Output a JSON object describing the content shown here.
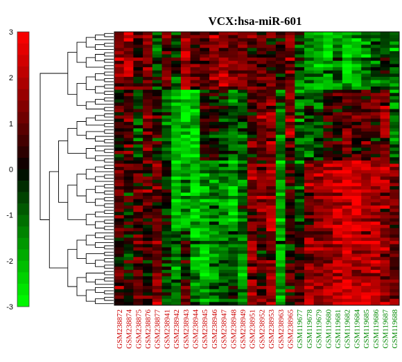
{
  "chart_data": {
    "type": "heatmap",
    "title": "VCX:hsa-miR-601",
    "color_scale": {
      "ticks": [
        3,
        2,
        1,
        0,
        -1,
        -2,
        -3
      ],
      "range": [
        -3,
        3
      ],
      "high_color": "#ff0000",
      "mid_color": "#000000",
      "low_color": "#00ff00"
    },
    "columns": [
      {
        "label": "GSM238872",
        "group_color": "#cc0000",
        "profile": [
          0.8,
          0.2,
          0.6,
          0.3
        ]
      },
      {
        "label": "GSM238874",
        "group_color": "#cc0000",
        "profile": [
          1.1,
          0.5,
          0.2,
          -0.2
        ]
      },
      {
        "label": "GSM238875",
        "group_color": "#cc0000",
        "profile": [
          0.3,
          -0.4,
          0.5,
          0.6
        ]
      },
      {
        "label": "GSM238876",
        "group_color": "#cc0000",
        "profile": [
          0.9,
          0.6,
          0.4,
          0.2
        ]
      },
      {
        "label": "GSM238877",
        "group_color": "#cc0000",
        "profile": [
          -0.6,
          0.1,
          0.7,
          0.8
        ]
      },
      {
        "label": "GSM238941",
        "group_color": "#cc0000",
        "profile": [
          0.7,
          -0.5,
          -0.2,
          -0.4
        ]
      },
      {
        "label": "GSM238942",
        "group_color": "#cc0000",
        "profile": [
          -0.3,
          -1.2,
          -1.3,
          -0.8
        ]
      },
      {
        "label": "GSM238943",
        "group_color": "#cc0000",
        "profile": [
          1.2,
          -1.6,
          -1.1,
          0.1
        ]
      },
      {
        "label": "GSM238944",
        "group_color": "#cc0000",
        "profile": [
          0.4,
          -1.5,
          -1.4,
          -1.0
        ]
      },
      {
        "label": "GSM238945",
        "group_color": "#cc0000",
        "profile": [
          0.6,
          0.3,
          -1.2,
          -1.3
        ]
      },
      {
        "label": "GSM238946",
        "group_color": "#cc0000",
        "profile": [
          0.9,
          0.2,
          -0.8,
          -0.9
        ]
      },
      {
        "label": "GSM238947",
        "group_color": "#cc0000",
        "profile": [
          1.0,
          -0.2,
          -1.0,
          -0.6
        ]
      },
      {
        "label": "GSM238948",
        "group_color": "#cc0000",
        "profile": [
          0.7,
          -0.7,
          -1.3,
          -0.5
        ]
      },
      {
        "label": "GSM238949",
        "group_color": "#cc0000",
        "profile": [
          0.8,
          -0.5,
          -0.6,
          -0.9
        ]
      },
      {
        "label": "GSM238951",
        "group_color": "#cc0000",
        "profile": [
          0.5,
          0.4,
          0.9,
          1.0
        ]
      },
      {
        "label": "GSM238952",
        "group_color": "#cc0000",
        "profile": [
          0.6,
          0.7,
          0.6,
          0.3
        ]
      },
      {
        "label": "GSM238953",
        "group_color": "#cc0000",
        "profile": [
          0.4,
          0.9,
          1.1,
          0.9
        ]
      },
      {
        "label": "GSM238963",
        "group_color": "#cc0000",
        "profile": [
          0.2,
          -0.5,
          -1.2,
          -1.1
        ]
      },
      {
        "label": "GSM238965",
        "group_color": "#cc0000",
        "profile": [
          0.6,
          0.8,
          0.4,
          0.2
        ]
      },
      {
        "label": "GSM119677",
        "group_color": "#008800",
        "profile": [
          -0.7,
          -0.6,
          -0.4,
          0.5
        ]
      },
      {
        "label": "GSM119678",
        "group_color": "#008800",
        "profile": [
          -1.0,
          -0.6,
          0.6,
          1.0
        ]
      },
      {
        "label": "GSM119679",
        "group_color": "#008800",
        "profile": [
          -1.3,
          -0.5,
          0.9,
          0.8
        ]
      },
      {
        "label": "GSM119680",
        "group_color": "#008800",
        "profile": [
          -1.2,
          0.3,
          1.2,
          1.1
        ]
      },
      {
        "label": "GSM119681",
        "group_color": "#008800",
        "profile": [
          -0.9,
          0.2,
          1.4,
          1.3
        ]
      },
      {
        "label": "GSM119682",
        "group_color": "#008800",
        "profile": [
          -1.4,
          0.6,
          1.5,
          1.4
        ]
      },
      {
        "label": "GSM119684",
        "group_color": "#008800",
        "profile": [
          -1.1,
          0.4,
          1.6,
          1.4
        ]
      },
      {
        "label": "GSM119685",
        "group_color": "#008800",
        "profile": [
          -0.9,
          0.7,
          1.3,
          1.2
        ]
      },
      {
        "label": "GSM119686",
        "group_color": "#008800",
        "profile": [
          -0.6,
          0.5,
          1.2,
          1.3
        ]
      },
      {
        "label": "GSM119687",
        "group_color": "#008800",
        "profile": [
          -0.4,
          0.8,
          1.0,
          0.9
        ]
      },
      {
        "label": "GSM119688",
        "group_color": "#008800",
        "profile": [
          -0.8,
          -0.6,
          0.7,
          0.6
        ]
      }
    ],
    "row_count": 85,
    "row_dendrogram": true
  }
}
